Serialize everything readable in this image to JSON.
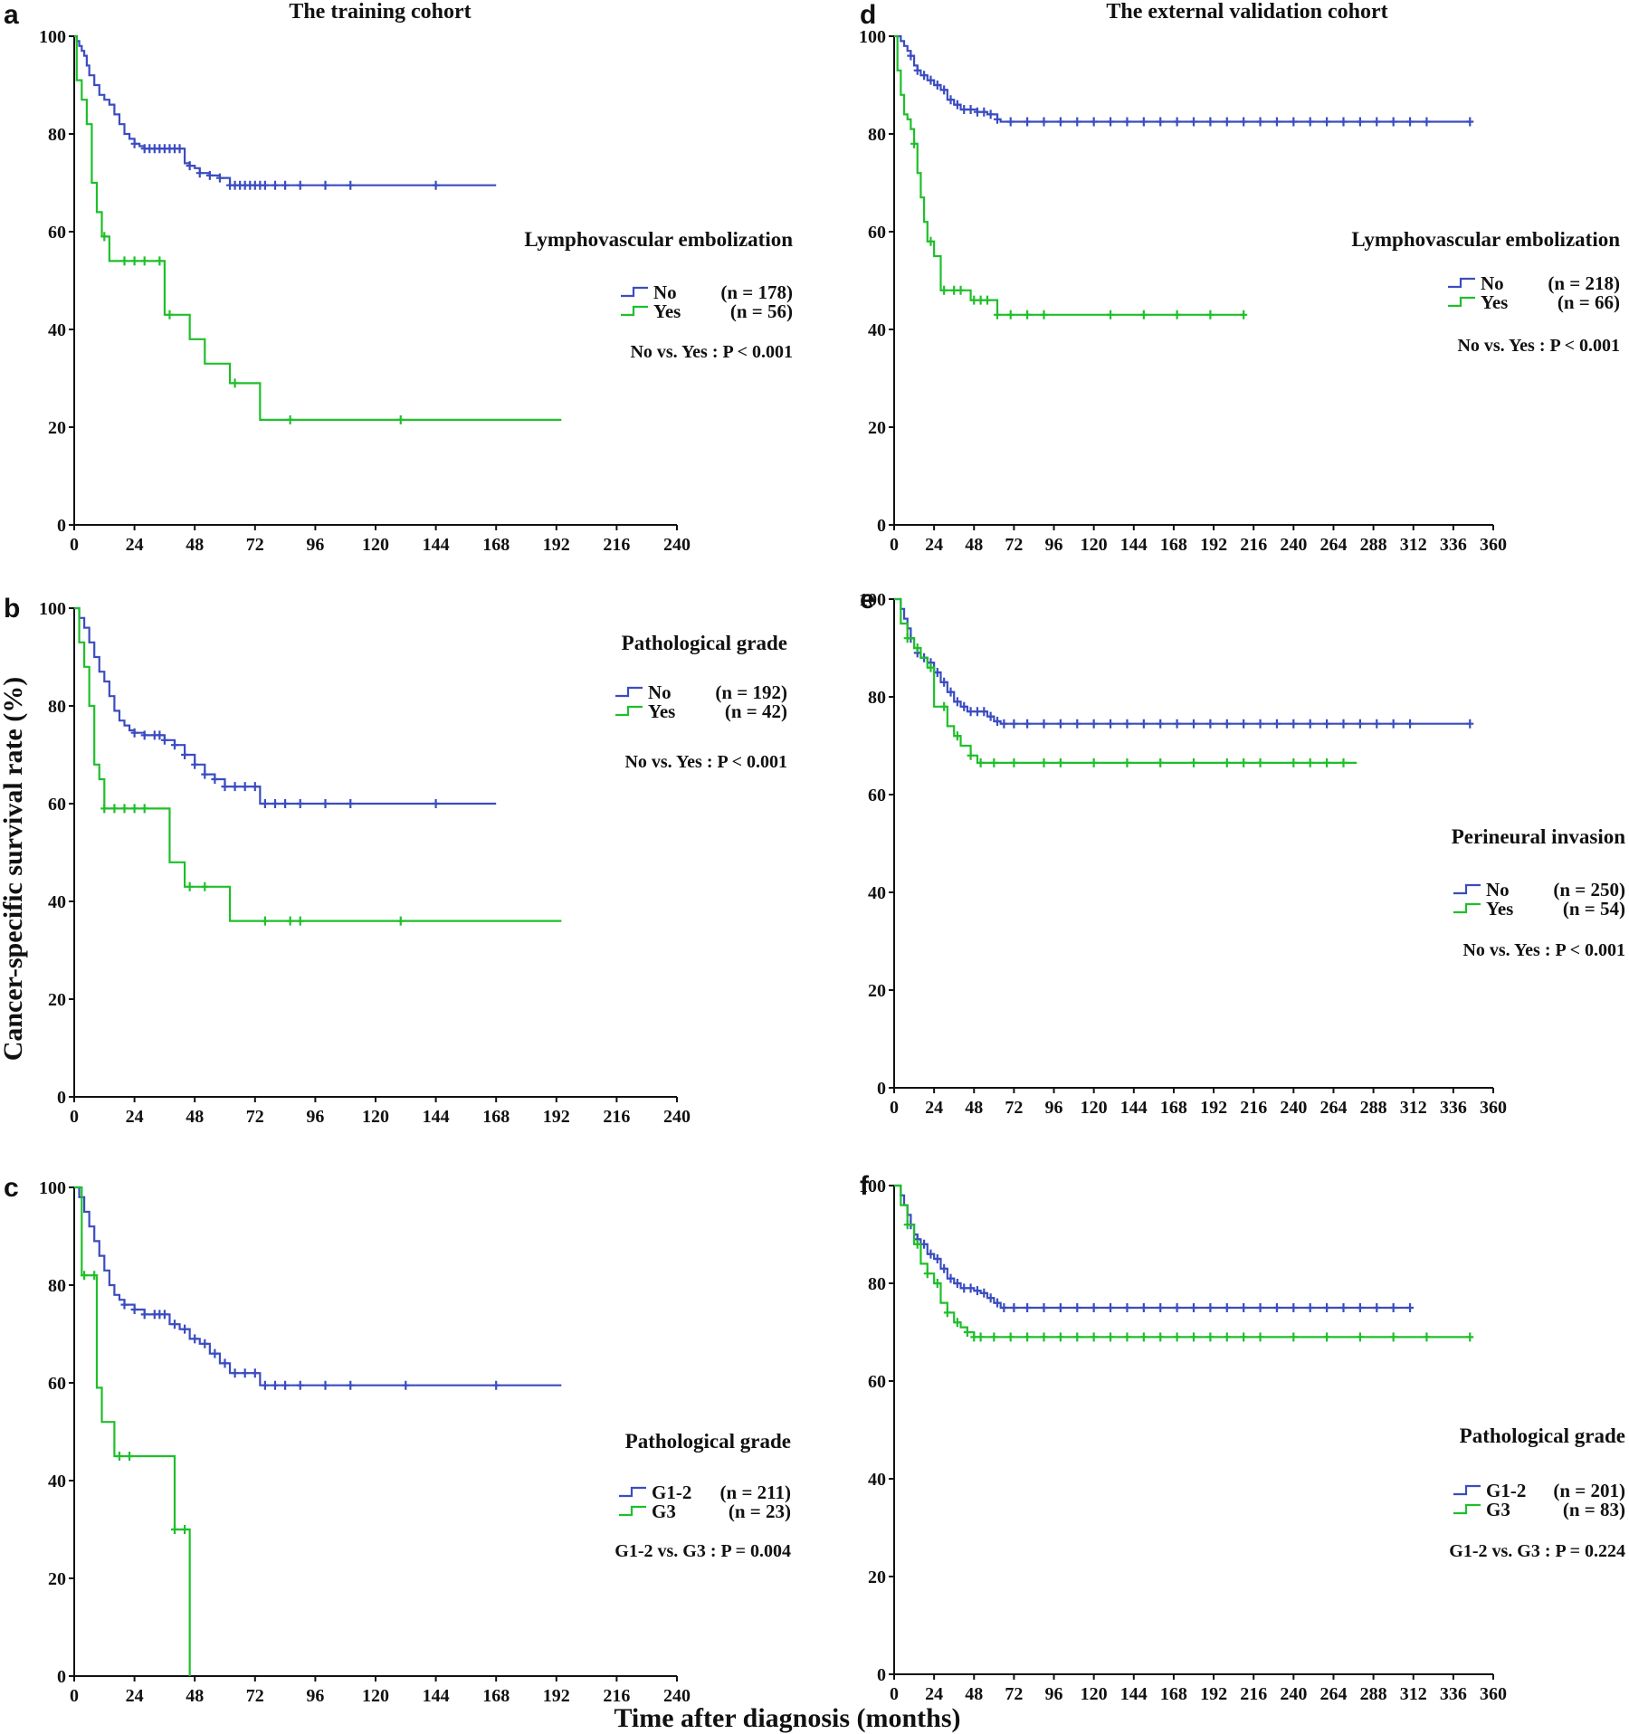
{
  "figure": {
    "ylabel": "Cancer-specific survival rate (%)",
    "xlabel": "Time after diagnosis (months)"
  },
  "colors": {
    "No": "#3b4cc0",
    "Yes": "#1fbf2a"
  },
  "chart_data": [
    {
      "type": "line",
      "panel": "a",
      "title": "The training cohort",
      "xlim": [
        0,
        240
      ],
      "xticks": [
        0,
        24,
        48,
        72,
        96,
        120,
        144,
        168,
        192,
        216,
        240
      ],
      "ylim": [
        0,
        100
      ],
      "yticks": [
        0,
        20,
        40,
        60,
        80,
        100
      ],
      "legend_title": "Lymphovascular embolization",
      "p_value": "No vs. Yes : P < 0.001",
      "series": [
        {
          "name": "No",
          "n": "(n = 178)",
          "color": "#3b4cc0",
          "x": [
            0,
            1,
            2,
            3,
            4,
            5,
            6,
            8,
            10,
            12,
            14,
            16,
            18,
            20,
            22,
            24,
            26,
            28,
            30,
            36,
            40,
            42,
            44,
            46,
            48,
            50,
            54,
            58,
            62,
            66,
            72,
            80,
            90,
            110,
            140,
            168
          ],
          "y": [
            100,
            99,
            98,
            97,
            96,
            94,
            92,
            90,
            88,
            87,
            86,
            84,
            82,
            80,
            79,
            78,
            77.5,
            77,
            77,
            77,
            77,
            77,
            74,
            73.5,
            73,
            72,
            71.5,
            71,
            69.5,
            69.5,
            69.5,
            69.5,
            69.5,
            69.5,
            69.5,
            69.5
          ],
          "censor_x": [
            24,
            28,
            30,
            32,
            34,
            36,
            38,
            40,
            42,
            46,
            50,
            54,
            58,
            62,
            64,
            66,
            68,
            70,
            72,
            74,
            76,
            80,
            84,
            90,
            100,
            110,
            144
          ]
        },
        {
          "name": "Yes",
          "n": "(n = 56)",
          "color": "#1fbf2a",
          "x": [
            0,
            1,
            3,
            5,
            7,
            9,
            11,
            14,
            30,
            36,
            40,
            46,
            52,
            62,
            74,
            194
          ],
          "y": [
            100,
            91,
            87,
            82,
            70,
            64,
            59,
            54,
            54,
            43,
            43,
            38,
            33,
            29,
            21.5,
            21.5
          ],
          "censor_x": [
            12,
            20,
            24,
            28,
            34,
            38,
            64,
            86,
            130
          ]
        }
      ]
    },
    {
      "type": "line",
      "panel": "b",
      "title": "",
      "xlim": [
        0,
        240
      ],
      "xticks": [
        0,
        24,
        48,
        72,
        96,
        120,
        144,
        168,
        192,
        216,
        240
      ],
      "ylim": [
        0,
        100
      ],
      "yticks": [
        0,
        20,
        40,
        60,
        80,
        100
      ],
      "legend_title": "Pathological grade",
      "p_value": "No vs. Yes : P < 0.001",
      "series": [
        {
          "name": "No",
          "n": "(n = 192)",
          "color": "#3b4cc0",
          "x": [
            0,
            2,
            4,
            6,
            8,
            10,
            12,
            14,
            16,
            18,
            20,
            22,
            24,
            28,
            32,
            36,
            40,
            44,
            48,
            52,
            56,
            60,
            66,
            72,
            74,
            90,
            120,
            168
          ],
          "y": [
            100,
            98,
            96,
            93,
            90,
            87,
            85,
            82,
            79,
            77,
            76,
            75,
            74.5,
            74,
            74,
            73,
            72,
            70,
            68,
            66,
            65,
            63.5,
            63.5,
            63.5,
            60,
            60,
            60,
            60
          ],
          "censor_x": [
            24,
            28,
            32,
            34,
            36,
            40,
            44,
            48,
            52,
            56,
            60,
            64,
            68,
            72,
            76,
            80,
            84,
            90,
            100,
            110,
            144
          ]
        },
        {
          "name": "Yes",
          "n": "(n = 42)",
          "color": "#1fbf2a",
          "x": [
            0,
            2,
            4,
            6,
            8,
            10,
            12,
            36,
            38,
            44,
            62,
            194
          ],
          "y": [
            100,
            93,
            88,
            80,
            68,
            65,
            59,
            59,
            48,
            43,
            36,
            36
          ],
          "censor_x": [
            12,
            16,
            20,
            24,
            28,
            46,
            52,
            76,
            86,
            90,
            130
          ]
        }
      ]
    },
    {
      "type": "line",
      "panel": "c",
      "title": "",
      "xlim": [
        0,
        240
      ],
      "xticks": [
        0,
        24,
        48,
        72,
        96,
        120,
        144,
        168,
        192,
        216,
        240
      ],
      "ylim": [
        0,
        100
      ],
      "yticks": [
        0,
        20,
        40,
        60,
        80,
        100
      ],
      "legend_title": "Pathological grade",
      "p_value": "G1-2 vs. G3 : P = 0.004",
      "series": [
        {
          "name": "G1-2",
          "n": "(n = 211)",
          "color": "#3b4cc0",
          "x": [
            0,
            2,
            4,
            6,
            8,
            10,
            12,
            14,
            16,
            18,
            20,
            24,
            28,
            34,
            38,
            42,
            46,
            50,
            54,
            58,
            62,
            68,
            72,
            74,
            90,
            120,
            194
          ],
          "y": [
            100,
            98,
            95,
            92,
            89,
            86,
            83,
            80,
            78,
            77,
            76,
            75,
            74,
            74,
            72,
            71,
            69,
            68,
            66,
            64,
            62,
            62,
            62,
            59.5,
            59.5,
            59.5,
            59.5
          ],
          "censor_x": [
            20,
            24,
            28,
            32,
            34,
            36,
            40,
            44,
            48,
            52,
            56,
            60,
            64,
            68,
            72,
            76,
            80,
            84,
            90,
            100,
            110,
            132,
            168
          ]
        },
        {
          "name": "G3",
          "n": "(n = 23)",
          "color": "#1fbf2a",
          "x": [
            0,
            3,
            7,
            9,
            11,
            16,
            38,
            40,
            46,
            46
          ],
          "y": [
            100,
            82,
            82,
            59,
            52,
            45,
            45,
            30,
            30,
            0
          ],
          "censor_x": [
            4,
            8,
            18,
            22,
            40,
            44
          ]
        }
      ]
    },
    {
      "type": "line",
      "panel": "d",
      "title": "The external validation cohort",
      "xlim": [
        0,
        360
      ],
      "xticks": [
        0,
        24,
        48,
        72,
        96,
        120,
        144,
        168,
        192,
        216,
        240,
        264,
        288,
        312,
        336,
        360
      ],
      "ylim": [
        0,
        100
      ],
      "yticks": [
        0,
        20,
        40,
        60,
        80,
        100
      ],
      "legend_title": "Lymphovascular embolization",
      "p_value": "No vs. Yes : P < 0.001",
      "series": [
        {
          "name": "No",
          "n": "(n = 218)",
          "color": "#3b4cc0",
          "x": [
            0,
            4,
            6,
            8,
            10,
            12,
            14,
            16,
            20,
            24,
            28,
            32,
            36,
            40,
            44,
            50,
            56,
            62,
            64,
            346
          ],
          "y": [
            100,
            99,
            98,
            97,
            96,
            94,
            93,
            92,
            91,
            90,
            89,
            87,
            86,
            85,
            85,
            84.5,
            84,
            83,
            82.5,
            82.5
          ],
          "censor_x": [
            10,
            14,
            18,
            22,
            26,
            30,
            34,
            38,
            42,
            46,
            50,
            54,
            58,
            62,
            70,
            80,
            90,
            100,
            110,
            120,
            130,
            140,
            150,
            160,
            170,
            180,
            190,
            200,
            210,
            220,
            230,
            240,
            250,
            260,
            270,
            280,
            290,
            300,
            310,
            320,
            346
          ]
        },
        {
          "name": "Yes",
          "n": "(n = 66)",
          "color": "#1fbf2a",
          "x": [
            0,
            2,
            4,
            6,
            8,
            10,
            12,
            14,
            16,
            18,
            20,
            24,
            28,
            34,
            40,
            46,
            52,
            58,
            62,
            210
          ],
          "y": [
            100,
            93,
            88,
            84,
            83,
            81,
            78,
            72,
            67,
            62,
            58,
            55,
            48,
            48,
            48,
            46,
            46,
            46,
            43,
            43
          ],
          "censor_x": [
            12,
            22,
            30,
            36,
            40,
            48,
            52,
            56,
            62,
            70,
            80,
            90,
            130,
            150,
            170,
            190,
            210
          ]
        }
      ]
    },
    {
      "type": "line",
      "panel": "e",
      "title": "",
      "xlim": [
        0,
        360
      ],
      "xticks": [
        0,
        24,
        48,
        72,
        96,
        120,
        144,
        168,
        192,
        216,
        240,
        264,
        288,
        312,
        336,
        360
      ],
      "ylim": [
        0,
        100
      ],
      "yticks": [
        0,
        20,
        40,
        60,
        80,
        100
      ],
      "legend_title": "Perineural invasion",
      "p_value": "No vs. Yes : P < 0.001",
      "series": [
        {
          "name": "No",
          "n": "(n = 250)",
          "color": "#3b4cc0",
          "x": [
            0,
            4,
            6,
            8,
            10,
            12,
            14,
            16,
            20,
            24,
            28,
            32,
            36,
            40,
            44,
            48,
            52,
            56,
            60,
            64,
            346
          ],
          "y": [
            100,
            98,
            96,
            94,
            92,
            90,
            89,
            88,
            87,
            85,
            83,
            81,
            79,
            78,
            77,
            77,
            77,
            76,
            75,
            74.5,
            74.5
          ],
          "censor_x": [
            10,
            14,
            18,
            22,
            26,
            30,
            34,
            38,
            42,
            46,
            50,
            54,
            58,
            62,
            66,
            72,
            80,
            90,
            100,
            110,
            120,
            130,
            140,
            150,
            160,
            170,
            180,
            190,
            200,
            210,
            220,
            230,
            240,
            250,
            260,
            270,
            280,
            290,
            300,
            310,
            346
          ]
        },
        {
          "name": "Yes",
          "n": "(n = 54)",
          "color": "#1fbf2a",
          "x": [
            0,
            4,
            8,
            12,
            16,
            20,
            24,
            28,
            32,
            36,
            40,
            46,
            50,
            278
          ],
          "y": [
            100,
            95,
            92,
            90,
            88,
            86,
            78,
            78,
            74,
            72,
            70,
            68,
            66.5,
            66.5
          ],
          "censor_x": [
            8,
            14,
            22,
            30,
            38,
            46,
            52,
            60,
            72,
            90,
            100,
            120,
            140,
            160,
            180,
            200,
            210,
            220,
            240,
            250,
            260,
            270
          ]
        }
      ]
    },
    {
      "type": "line",
      "panel": "f",
      "title": "",
      "xlim": [
        0,
        360
      ],
      "xticks": [
        0,
        24,
        48,
        72,
        96,
        120,
        144,
        168,
        192,
        216,
        240,
        264,
        288,
        312,
        336,
        360
      ],
      "ylim": [
        0,
        100
      ],
      "yticks": [
        0,
        20,
        40,
        60,
        80,
        100
      ],
      "legend_title": "Pathological grade",
      "p_value": "G1-2 vs. G3 : P = 0.224",
      "series": [
        {
          "name": "G1-2",
          "n": "(n = 201)",
          "color": "#3b4cc0",
          "x": [
            0,
            4,
            6,
            8,
            10,
            12,
            14,
            16,
            20,
            24,
            28,
            32,
            36,
            40,
            44,
            48,
            52,
            56,
            60,
            64,
            310
          ],
          "y": [
            100,
            98,
            96,
            94,
            92,
            90,
            89,
            88,
            86,
            85,
            83,
            81,
            80,
            79,
            79,
            78.5,
            78,
            77,
            76,
            75,
            75
          ],
          "censor_x": [
            10,
            14,
            18,
            22,
            26,
            30,
            34,
            38,
            42,
            46,
            50,
            54,
            58,
            62,
            66,
            72,
            80,
            90,
            100,
            110,
            120,
            130,
            140,
            150,
            160,
            170,
            180,
            190,
            200,
            210,
            220,
            230,
            240,
            250,
            260,
            270,
            280,
            290,
            300,
            310
          ]
        },
        {
          "name": "G3",
          "n": "(n = 83)",
          "color": "#1fbf2a",
          "x": [
            0,
            4,
            8,
            12,
            16,
            20,
            24,
            28,
            32,
            36,
            40,
            44,
            48,
            346
          ],
          "y": [
            100,
            96,
            92,
            88,
            84,
            82,
            80,
            76,
            74,
            72,
            71,
            70,
            69,
            69
          ],
          "censor_x": [
            8,
            14,
            20,
            26,
            32,
            38,
            44,
            48,
            52,
            60,
            70,
            80,
            90,
            100,
            110,
            120,
            130,
            140,
            150,
            160,
            170,
            180,
            190,
            200,
            210,
            220,
            240,
            260,
            280,
            300,
            320,
            346
          ]
        }
      ]
    }
  ]
}
